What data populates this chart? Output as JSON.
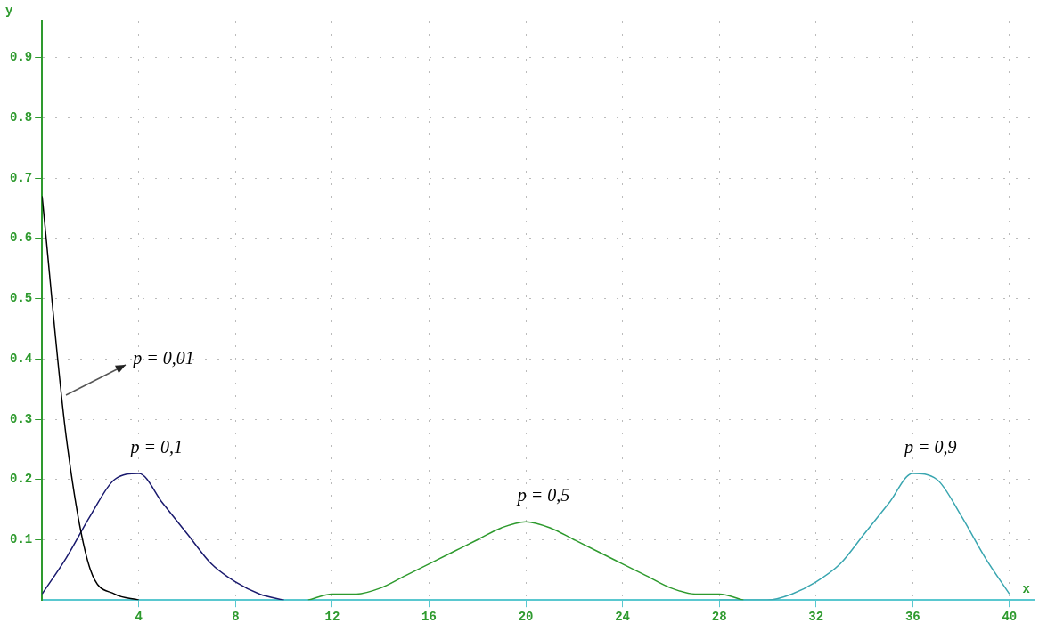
{
  "chart_data": {
    "type": "line",
    "xlabel": "x",
    "ylabel": "y",
    "xlim": [
      0,
      41
    ],
    "ylim": [
      0,
      0.96
    ],
    "xticks": [
      4,
      8,
      12,
      16,
      20,
      24,
      28,
      32,
      36,
      40
    ],
    "yticks": [
      0.1,
      0.2,
      0.3,
      0.4,
      0.5,
      0.6,
      0.7,
      0.8,
      0.9
    ],
    "grid": true,
    "legend": false,
    "marker": "none",
    "line_style": "solid",
    "series": [
      {
        "color": "#000000",
        "x": [
          0,
          1,
          2,
          3,
          4
        ],
        "values": [
          0.67,
          0.27,
          0.05,
          0.01,
          0
        ]
      },
      {
        "color": "#1a1a6e",
        "x": [
          0,
          1,
          2,
          3,
          4,
          5,
          6,
          7,
          8,
          9,
          10
        ],
        "values": [
          0.01,
          0.07,
          0.14,
          0.2,
          0.21,
          0.16,
          0.11,
          0.06,
          0.03,
          0.01,
          0
        ]
      },
      {
        "color": "#2e9a2e",
        "x": [
          11,
          12,
          13,
          14,
          15,
          16,
          17,
          18,
          19,
          20,
          21,
          22,
          23,
          24,
          25,
          26,
          27,
          28,
          29
        ],
        "values": [
          0,
          0.01,
          0.01,
          0.02,
          0.04,
          0.06,
          0.08,
          0.1,
          0.12,
          0.13,
          0.12,
          0.1,
          0.08,
          0.06,
          0.04,
          0.02,
          0.01,
          0.01,
          0
        ]
      },
      {
        "color": "#3aa6b0",
        "x": [
          28,
          29,
          30,
          31,
          32,
          33,
          34,
          35,
          36,
          37,
          38,
          39,
          40
        ],
        "values": [
          0,
          0,
          0,
          0.01,
          0.03,
          0.06,
          0.11,
          0.16,
          0.21,
          0.2,
          0.14,
          0.07,
          0.01
        ]
      }
    ],
    "annotations": [
      {
        "text": "p = 0,01",
        "x": 1,
        "y": 0.34
      },
      "p = 0,1",
      "p = 0,5",
      "p = 0,9"
    ]
  }
}
